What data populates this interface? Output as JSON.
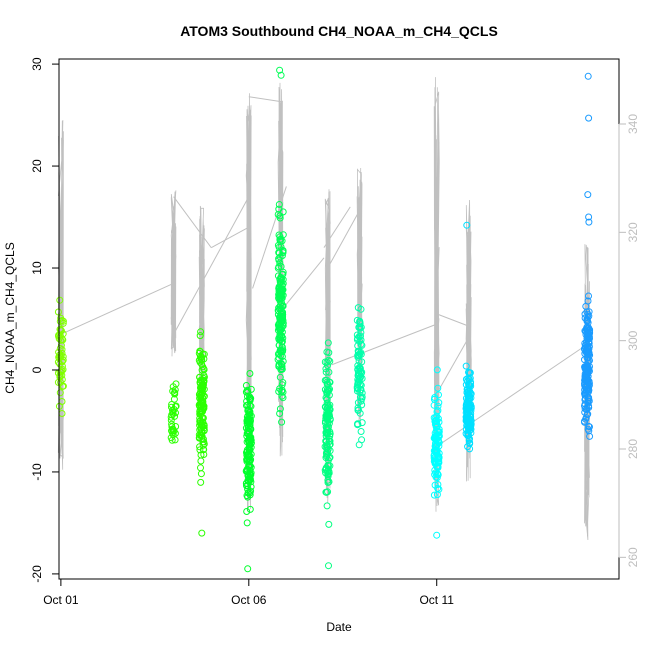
{
  "chart_data": {
    "type": "scatter",
    "title": "ATOM3 Southbound CH4_NOAA_m_CH4_QCLS",
    "xlabel": "Date",
    "ylabel": "CH4_NOAA_m_CH4_QCLS",
    "x_ticks": [
      "Oct 01",
      "Oct 06",
      "Oct 11"
    ],
    "y_ticks": [
      "-20",
      "-10",
      "0",
      "10",
      "20",
      "30"
    ],
    "y2_ticks": [
      "260",
      "280",
      "300",
      "320",
      "340"
    ],
    "xlim_days": [
      30.95,
      45.85
    ],
    "ylim": [
      -20.5,
      30.5
    ],
    "y2lim": [
      256,
      352
    ],
    "grid": false,
    "legend": "none",
    "colors": {
      "points_flight1": "#80ff00",
      "points_flight2": "#2bff00",
      "points_flight3": "#00ff2b",
      "points_flight4": "#00ff55",
      "points_flight5": "#00ff80",
      "points_flight6": "#00ffaa",
      "points_flight7": "#00ffff",
      "points_flight8": "#00e0ff",
      "points_flight9": "#1a9bff",
      "altitude_line": "#c0c0c0",
      "axis": "#000000",
      "y2_axis": "#bebebe"
    },
    "series": [
      {
        "day": 31.0,
        "color_key": "points_flight1",
        "y_center": 1.5,
        "y_spread": 7.5,
        "count": 55,
        "alt_range": [
          276,
          342
        ]
      },
      {
        "day": 34.0,
        "color_key": "points_flight2",
        "y_center": -4.5,
        "y_spread": 6.5,
        "count": 35,
        "alt_range": [
          297,
          328
        ]
      },
      {
        "day": 34.75,
        "color_key": "points_flight2",
        "y_center": -3.5,
        "y_spread": 10.0,
        "count": 140,
        "alt_range": [
          288,
          326
        ]
      },
      {
        "day": 36.0,
        "color_key": "points_flight3",
        "y_center": -8.0,
        "y_spread": 10.0,
        "count": 150,
        "alt_range": [
          268,
          349
        ]
      },
      {
        "day": 36.85,
        "color_key": "points_flight4",
        "y_center": 6.0,
        "y_spread": 14.0,
        "count": 180,
        "alt_range": [
          278,
          348
        ]
      },
      {
        "day": 38.1,
        "color_key": "points_flight5",
        "y_center": -5.5,
        "y_spread": 11.0,
        "count": 130,
        "alt_range": [
          270,
          328
        ]
      },
      {
        "day": 38.95,
        "color_key": "points_flight6",
        "y_center": -0.5,
        "y_spread": 9.0,
        "count": 90,
        "alt_range": [
          284,
          332
        ]
      },
      {
        "day": 41.0,
        "color_key": "points_flight7",
        "y_center": -7.0,
        "y_spread": 8.0,
        "count": 110,
        "alt_range": [
          268,
          350
        ]
      },
      {
        "day": 41.85,
        "color_key": "points_flight8",
        "y_center": -4.0,
        "y_spread": 6.5,
        "count": 130,
        "alt_range": [
          274,
          326
        ]
      },
      {
        "day": 45.0,
        "color_key": "points_flight9",
        "y_center": 0.5,
        "y_spread": 9.5,
        "count": 170,
        "alt_range": [
          262,
          318
        ]
      }
    ],
    "outliers": [
      {
        "day": 36.82,
        "y": 29.4
      },
      {
        "day": 36.86,
        "y": 28.9
      },
      {
        "day": 45.03,
        "y": 28.8
      },
      {
        "day": 45.04,
        "y": 24.7
      },
      {
        "day": 45.02,
        "y": 17.2
      },
      {
        "day": 45.04,
        "y": 15.0
      },
      {
        "day": 45.05,
        "y": 14.5
      },
      {
        "day": 41.8,
        "y": 14.2
      },
      {
        "day": 35.97,
        "y": -19.5
      },
      {
        "day": 38.12,
        "y": -19.2
      },
      {
        "day": 34.75,
        "y": -16.0
      },
      {
        "day": 41.0,
        "y": -16.2
      }
    ],
    "transit_lines": [
      [
        31.0,
        3.5,
        34.0,
        8.5
      ],
      [
        34.0,
        3.5,
        36.0,
        17.0
      ],
      [
        34.0,
        17.0,
        35.0,
        12.0
      ],
      [
        35.0,
        12.0,
        36.0,
        14.0
      ],
      [
        36.0,
        26.8,
        36.9,
        26.3
      ],
      [
        36.1,
        8.0,
        37.0,
        18.0
      ],
      [
        36.9,
        6.0,
        38.0,
        11.0
      ],
      [
        38.1,
        10.0,
        39.0,
        16.0
      ],
      [
        38.2,
        0.5,
        41.0,
        4.5
      ],
      [
        38.0,
        12.0,
        38.7,
        16.0
      ],
      [
        41.0,
        5.5,
        41.85,
        4.3
      ],
      [
        41.0,
        -7.5,
        45.0,
        2.5
      ],
      [
        41.05,
        -2.0,
        41.9,
        3.5
      ]
    ]
  }
}
